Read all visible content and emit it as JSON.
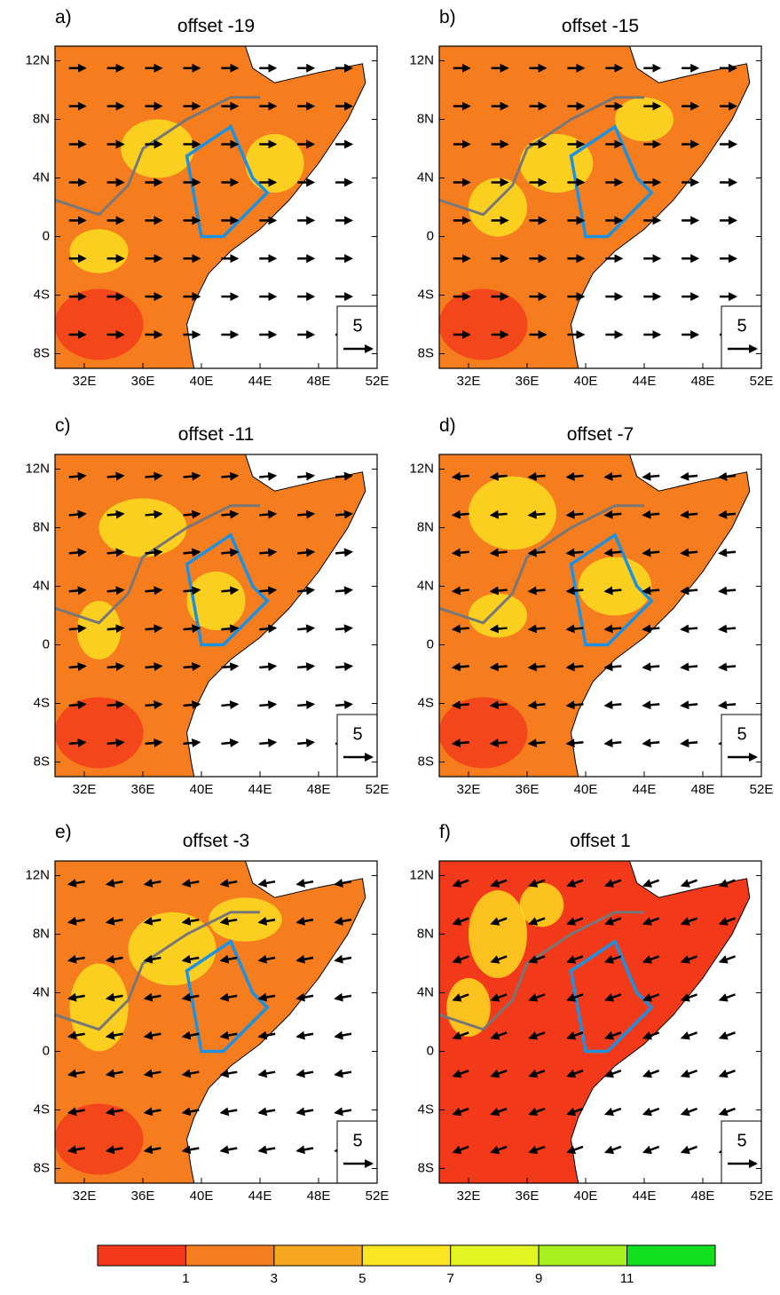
{
  "panels": [
    {
      "label": "a)",
      "title": "offset -19"
    },
    {
      "label": "b)",
      "title": "offset -15"
    },
    {
      "label": "c)",
      "title": "offset -11"
    },
    {
      "label": "d)",
      "title": "offset -7"
    },
    {
      "label": "e)",
      "title": "offset -3"
    },
    {
      "label": "f)",
      "title": "offset 1"
    }
  ],
  "xlim": [
    30,
    52
  ],
  "ylim": [
    -9,
    13
  ],
  "xticks": [
    {
      "value": 32,
      "label": "32E"
    },
    {
      "value": 36,
      "label": "36E"
    },
    {
      "value": 40,
      "label": "40E"
    },
    {
      "value": 44,
      "label": "44E"
    },
    {
      "value": 48,
      "label": "48E"
    },
    {
      "value": 52,
      "label": "52E"
    }
  ],
  "yticks": [
    {
      "value": 12,
      "label": "12N"
    },
    {
      "value": 8,
      "label": "8N"
    },
    {
      "value": 4,
      "label": "4N"
    },
    0,
    {
      "value": -4,
      "label": "4S"
    },
    {
      "value": -8,
      "label": "8S"
    }
  ],
  "reference_vector": 5,
  "colorbar": {
    "levels": [
      1,
      3,
      5,
      7,
      9,
      11
    ],
    "colors": [
      "#f23a1a",
      "#f57d1e",
      "#f8a820",
      "#fbe420",
      "#e3f520",
      "#a8f020",
      "#10e020"
    ]
  }
}
